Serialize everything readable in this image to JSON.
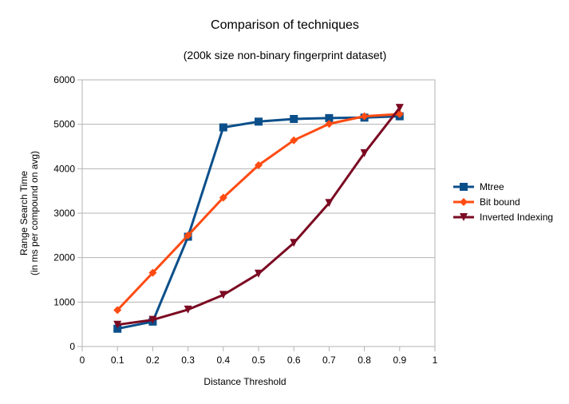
{
  "chart_data": {
    "type": "line",
    "title": "Comparison of techniques",
    "subtitle": "(200k size non-binary fingerprint dataset)",
    "xlabel": "Distance Threshold",
    "ylabel_line1": "Range Search Time",
    "ylabel_line2": "(in ms per compound on avg)",
    "xlim": [
      0,
      1
    ],
    "ylim": [
      0,
      6000
    ],
    "xticks": [
      0,
      0.1,
      0.2,
      0.3,
      0.4,
      0.5,
      0.6,
      0.7,
      0.8,
      0.9,
      1
    ],
    "xtick_labels": [
      "0",
      "0.1",
      "0.2",
      "0.3",
      "0.4",
      "0.5",
      "0.6",
      "0.7",
      "0.8",
      "0.9",
      "1"
    ],
    "yticks": [
      0,
      1000,
      2000,
      3000,
      4000,
      5000,
      6000
    ],
    "ytick_labels": [
      "0",
      "1000",
      "2000",
      "3000",
      "4000",
      "5000",
      "6000"
    ],
    "grid": "horizontal",
    "legend_position": "right",
    "x": [
      0.1,
      0.2,
      0.3,
      0.4,
      0.5,
      0.6,
      0.7,
      0.8,
      0.9
    ],
    "series": [
      {
        "name": "Mtree",
        "color": "#0b4f8a",
        "marker": "square",
        "values": [
          400,
          560,
          2470,
          4930,
          5060,
          5120,
          5140,
          5150,
          5180
        ]
      },
      {
        "name": " Bit bound",
        "color": "#ff4b12",
        "marker": "diamond",
        "values": [
          820,
          1660,
          2500,
          3350,
          4080,
          4640,
          5010,
          5180,
          5230
        ]
      },
      {
        "name": "Inverted Indexing",
        "color": "#7b0a22",
        "marker": "triangle-down",
        "values": [
          490,
          600,
          830,
          1160,
          1640,
          2330,
          3230,
          4350,
          5370
        ]
      }
    ]
  }
}
